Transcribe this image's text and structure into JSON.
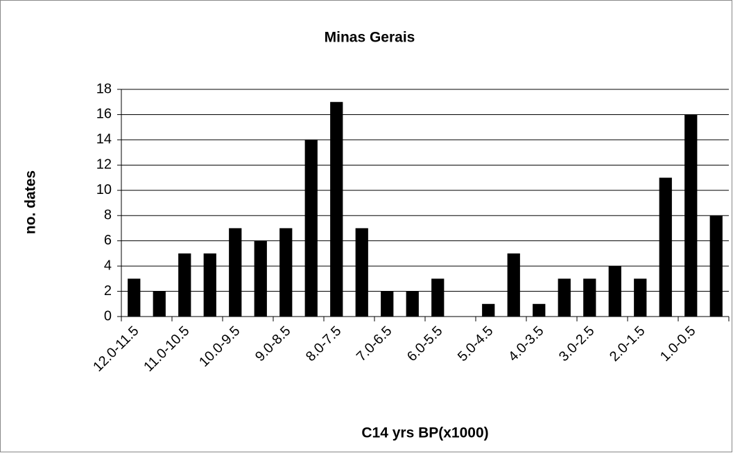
{
  "chart_data": {
    "type": "bar",
    "title": "Minas Gerais",
    "x_label": "C14 yrs BP(x1000)",
    "y_label": "no. dates",
    "categories": [
      "12.0-11.5",
      null,
      "11.0-10.5",
      null,
      "10.0-9.5",
      null,
      "9.0-8.5",
      null,
      "8.0-7.5",
      null,
      "7.0-6.5",
      null,
      "6.0-5.5",
      null,
      "5.0-4.5",
      null,
      "4.0-3.5",
      null,
      "3.0-2.5",
      null,
      "2.0-1.5",
      null,
      "1.0-0.5",
      null
    ],
    "values": [
      3,
      2,
      5,
      5,
      7,
      6,
      7,
      14,
      17,
      7,
      2,
      2,
      3,
      0,
      1,
      5,
      1,
      3,
      3,
      4,
      3,
      11,
      16,
      8
    ],
    "color": "#000000",
    "ylim": [
      0,
      18
    ],
    "yticks": [
      0,
      2,
      4,
      6,
      8,
      10,
      12,
      14,
      16,
      18
    ],
    "grid": true
  }
}
